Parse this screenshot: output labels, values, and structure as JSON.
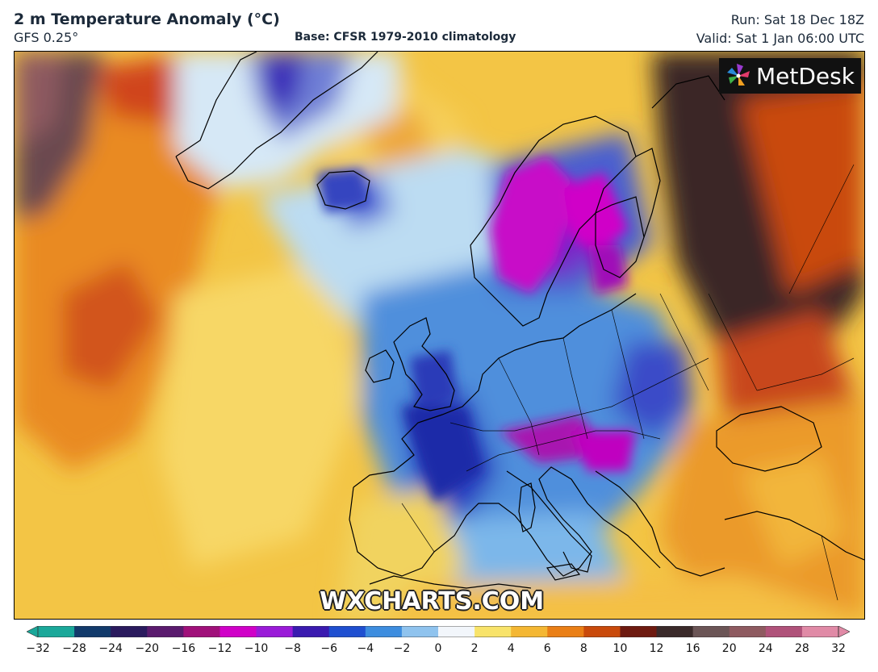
{
  "header": {
    "title": "2 m Temperature Anomaly (°C)",
    "model": "GFS 0.25°",
    "base": "Base: CFSR 1979-2010 climatology",
    "run": "Run: Sat 18 Dec 18Z",
    "valid": "Valid: Sat 1 Jan 06:00 UTC"
  },
  "map": {
    "logo_text": "MetDesk",
    "logo_icon": "pinwheel-icon",
    "watermark": "WXCHARTS.COM"
  },
  "colorbar": {
    "ticks": [
      "−32",
      "−28",
      "−24",
      "−20",
      "−16",
      "−12",
      "−10",
      "−8",
      "−6",
      "−4",
      "−2",
      "0",
      "2",
      "4",
      "6",
      "8",
      "10",
      "12",
      "16",
      "20",
      "24",
      "28",
      "32"
    ],
    "colors": [
      "#1aa89a",
      "#123a6b",
      "#2a1a5e",
      "#5a1a6e",
      "#a0107a",
      "#d000c8",
      "#9a1ad8",
      "#3a1ab0",
      "#1f4fd0",
      "#3d8ddf",
      "#8fc3ee",
      "#f2f6fb",
      "#f8e36a",
      "#f4b733",
      "#ea7f16",
      "#c94a0b",
      "#6e1a10",
      "#3a2a2a",
      "#6b5556",
      "#8e5a60",
      "#b0527a",
      "#e08aa6"
    ]
  }
}
